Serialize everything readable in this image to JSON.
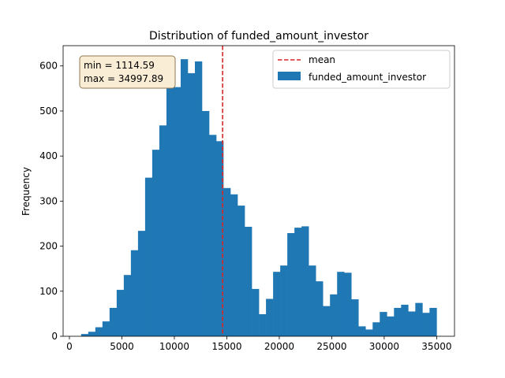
{
  "chart_data": {
    "type": "bar",
    "title": "Distribution of funded_amount_investor",
    "xlabel": "",
    "ylabel": "Frequency",
    "xlim": [
      -600,
      36700
    ],
    "ylim": [
      0,
      645
    ],
    "xticks": [
      0,
      5000,
      10000,
      15000,
      20000,
      25000,
      30000,
      35000
    ],
    "yticks": [
      0,
      100,
      200,
      300,
      400,
      500,
      600
    ],
    "grid": false,
    "legend_position": "top-right",
    "legend": [
      {
        "label": "mean",
        "style": "dashed-line",
        "color": "#d62728"
      },
      {
        "label": "funded_amount_investor",
        "style": "patch",
        "color": "#1f77b4"
      }
    ],
    "series": [
      {
        "name": "funded_amount_investor",
        "color": "#1f77b4",
        "bin_start": 1114.59,
        "bin_end": 34997.89,
        "counts": [
          5,
          10,
          20,
          33,
          63,
          103,
          136,
          191,
          234,
          352,
          414,
          468,
          551,
          553,
          615,
          584,
          610,
          500,
          447,
          433,
          329,
          315,
          290,
          243,
          105,
          49,
          83,
          143,
          157,
          229,
          241,
          244,
          157,
          122,
          67,
          93,
          143,
          141,
          82,
          22,
          15,
          31,
          54,
          44,
          63,
          70,
          55,
          74,
          52,
          63
        ]
      }
    ],
    "mean_line": {
      "label": "mean",
      "value": 14600,
      "color": "#d62728"
    },
    "annotation": {
      "lines": [
        "min = 1114.59",
        "max = 34997.89"
      ],
      "box_fill": "#f5deb3",
      "position": "top-left"
    },
    "colors": {
      "bar": "#1f77b4",
      "mean": "#d62728"
    }
  }
}
